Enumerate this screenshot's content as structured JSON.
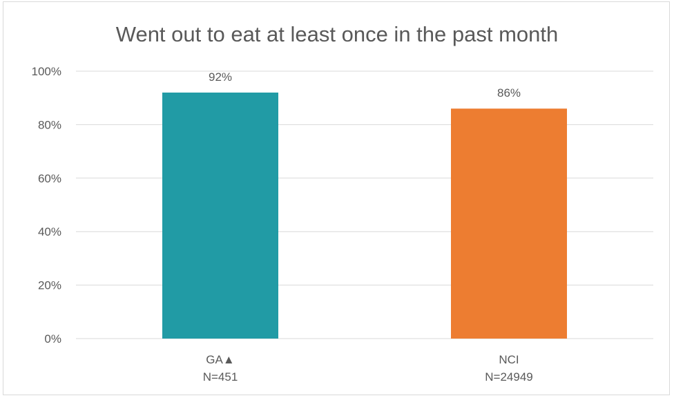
{
  "chart_data": {
    "type": "bar",
    "title": "Went out to eat at least once in the past month",
    "categories": [
      [
        "GA▲",
        "N=451"
      ],
      [
        "NCI",
        "N=24949"
      ]
    ],
    "values": [
      92,
      86
    ],
    "data_labels": [
      "92%",
      "86%"
    ],
    "ylim": [
      0,
      100
    ],
    "yticks": [
      0,
      20,
      40,
      60,
      80,
      100
    ],
    "ytick_labels": [
      "0%",
      "20%",
      "40%",
      "60%",
      "80%",
      "100%"
    ],
    "grid": true,
    "legend": "none",
    "colors": [
      "#219ba5",
      "#ed7d31"
    ],
    "gridline_color": "#d9d9d9"
  }
}
